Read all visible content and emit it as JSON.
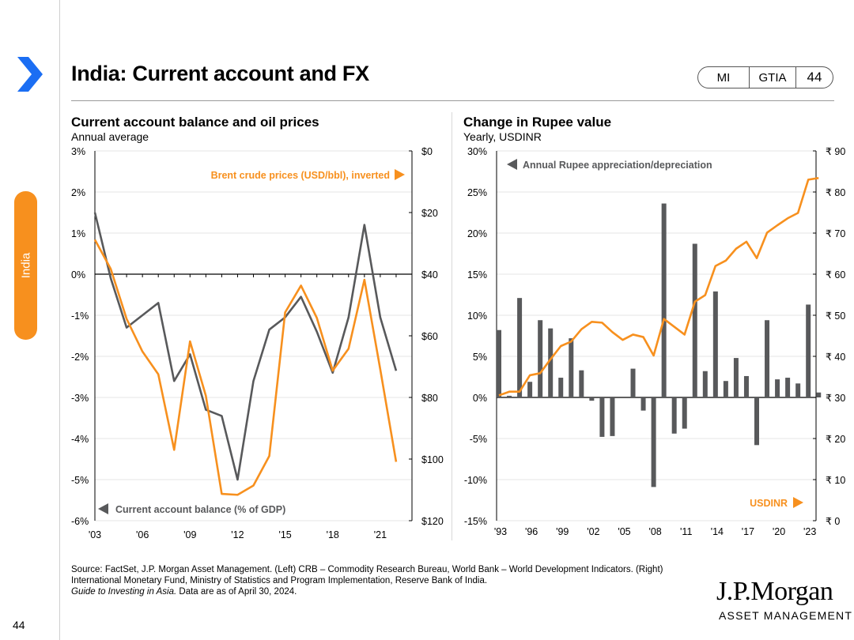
{
  "header": {
    "title": "India: Current account and FX",
    "badges": [
      "MI",
      "GTIA",
      "44"
    ]
  },
  "sidebar": {
    "label": "India"
  },
  "chart_data": [
    {
      "type": "line",
      "title": "Current account balance and oil prices",
      "subtitle": "Annual average",
      "x": [
        2003,
        2004,
        2005,
        2006,
        2007,
        2008,
        2009,
        2010,
        2011,
        2012,
        2013,
        2014,
        2015,
        2016,
        2017,
        2018,
        2019,
        2020,
        2021,
        2022
      ],
      "x_tick_labels": [
        "'03",
        "'06",
        "'09",
        "'12",
        "'15",
        "'18",
        "'21"
      ],
      "x_ticks": [
        2003,
        2006,
        2009,
        2012,
        2015,
        2018,
        2021
      ],
      "y_left_ticks": [
        "3%",
        "2%",
        "1%",
        "0%",
        "-1%",
        "-2%",
        "-3%",
        "-4%",
        "-5%",
        "-6%"
      ],
      "y_left_range": [
        -6,
        3
      ],
      "y_right_ticks": [
        "$0",
        "$20",
        "$40",
        "$60",
        "$80",
        "$100",
        "$120"
      ],
      "y_right_range_inverted": [
        0,
        120
      ],
      "series": [
        {
          "name": "Current account balance (% of GDP)",
          "axis": "left",
          "color": "#58595b",
          "values": [
            1.5,
            -0.1,
            -1.3,
            -1.0,
            -0.7,
            -2.6,
            -1.95,
            -3.3,
            -3.45,
            -5.0,
            -2.6,
            -1.35,
            -1.05,
            -0.55,
            -1.4,
            -2.4,
            -1.05,
            1.2,
            -1.05,
            -2.35
          ]
        },
        {
          "name": "Brent crude prices (USD/bbl), inverted",
          "axis": "right",
          "color": "#f7901e",
          "values": [
            28.8,
            38.3,
            54.5,
            65.1,
            72.5,
            97.0,
            61.8,
            79.5,
            111.3,
            111.6,
            108.6,
            99.0,
            52.4,
            43.7,
            54.2,
            71.3,
            64.2,
            41.8,
            70.9,
            100.9
          ]
        }
      ],
      "annotations": {
        "left_label": "Current account balance (% of GDP)",
        "right_label": "Brent crude prices (USD/bbl), inverted"
      }
    },
    {
      "type": "bar+line",
      "title": "Change in Rupee value",
      "subtitle": "Yearly, USDINR",
      "x": [
        1993,
        1994,
        1995,
        1996,
        1997,
        1998,
        1999,
        2000,
        2001,
        2002,
        2003,
        2004,
        2005,
        2006,
        2007,
        2008,
        2009,
        2010,
        2011,
        2012,
        2013,
        2014,
        2015,
        2016,
        2017,
        2018,
        2019,
        2020,
        2021,
        2022,
        2023,
        2024
      ],
      "x_tick_labels": [
        "'93",
        "'96",
        "'99",
        "'02",
        "'05",
        "'08",
        "'11",
        "'14",
        "'17",
        "'20",
        "'23"
      ],
      "x_ticks": [
        1993,
        1996,
        1999,
        2002,
        2005,
        2008,
        2011,
        2014,
        2017,
        2020,
        2023
      ],
      "y_left_ticks": [
        "30%",
        "25%",
        "20%",
        "15%",
        "10%",
        "5%",
        "0%",
        "-5%",
        "-10%",
        "-15%"
      ],
      "y_left_range": [
        -15,
        30
      ],
      "y_right_ticks": [
        "₹ 90",
        "₹ 80",
        "₹ 70",
        "₹ 60",
        "₹ 50",
        "₹ 40",
        "₹ 30",
        "₹ 20",
        "₹ 10",
        "₹ 0"
      ],
      "y_right_range": [
        0,
        90
      ],
      "series": [
        {
          "name": "Annual Rupee appreciation/depreciation",
          "type": "bar",
          "axis": "left",
          "color": "#58595b",
          "values": [
            8.2,
            0.2,
            12.1,
            1.9,
            9.4,
            8.4,
            2.4,
            7.2,
            3.3,
            -0.4,
            -4.8,
            -4.7,
            0,
            3.5,
            -1.6,
            -10.9,
            23.6,
            -4.4,
            -3.8,
            18.7,
            3.2,
            12.9,
            2.0,
            4.8,
            2.6,
            -5.8,
            9.4,
            2.2,
            2.4,
            1.7,
            11.3,
            0.6
          ]
        },
        {
          "name": "USDINR",
          "type": "line",
          "axis": "right",
          "color": "#f7901e",
          "values": [
            30.5,
            31.4,
            31.4,
            35.4,
            35.9,
            39.3,
            42.5,
            43.6,
            46.6,
            48.4,
            48.2,
            45.9,
            44.0,
            45.3,
            44.7,
            40.2,
            49.1,
            47.2,
            45.3,
            53.3,
            54.9,
            62.0,
            63.3,
            66.2,
            67.9,
            63.9,
            70.1,
            71.9,
            73.6,
            74.9,
            83.0,
            83.4
          ]
        }
      ],
      "annotations": {
        "bar_label": "Annual Rupee appreciation/depreciation",
        "line_label": "USDINR"
      }
    }
  ],
  "footer": {
    "source_line1": "Source: FactSet, J.P. Morgan Asset Management. (Left) CRB – Commodity Research Bureau, World Bank – World Development Indicators. (Right)",
    "source_line2": "International Monetary Fund, Ministry of Statistics and Program Implementation, Reserve Bank of India.",
    "source_italic": "Guide to Investing in Asia.",
    "source_date": " Data are as of April 30, 2024.",
    "page_number": "44",
    "logo_name": "J.P.Morgan",
    "logo_sub": "ASSET MANAGEMENT"
  },
  "colors": {
    "accent": "#f7901e",
    "gray_series": "#58595b"
  }
}
